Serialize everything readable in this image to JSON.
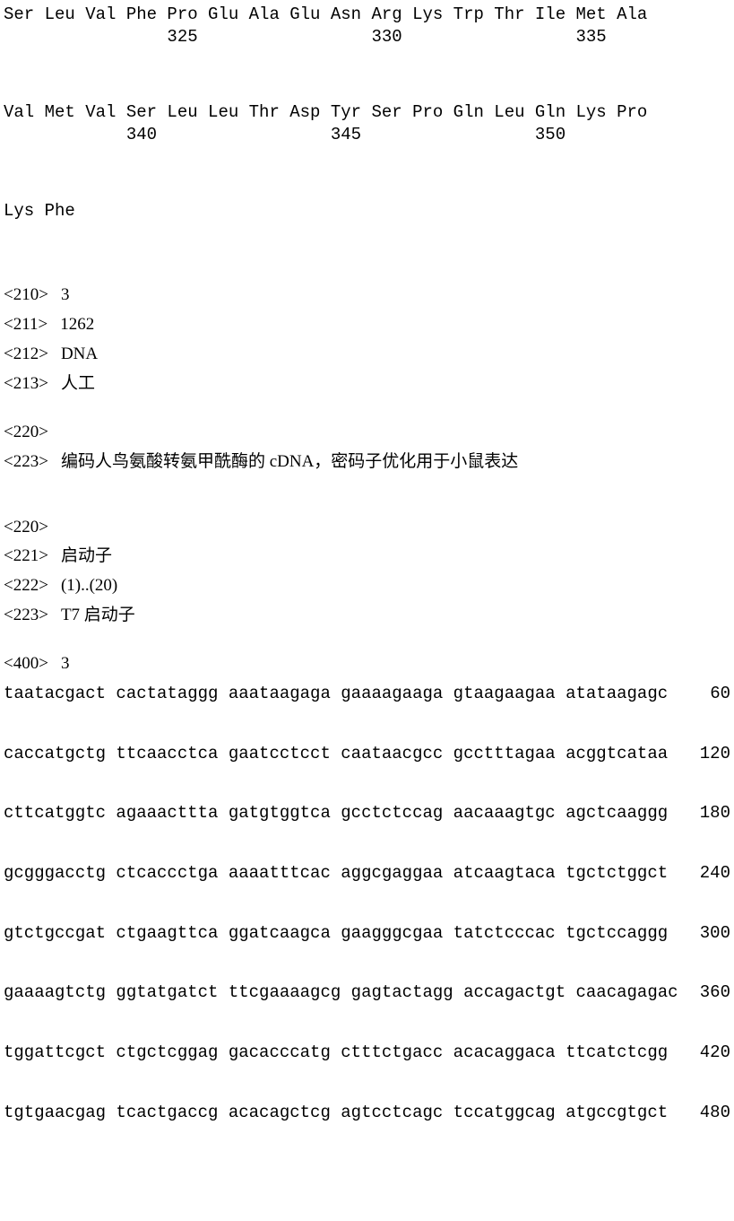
{
  "protein_rows": [
    {
      "residues": "Ser Leu Val Phe Pro Glu Ala Glu Asn Arg Lys Trp Thr Ile Met Ala",
      "positions": "                325                 330                 335"
    },
    {
      "residues": "Val Met Val Ser Leu Leu Thr Asp Tyr Ser Pro Gln Leu Gln Lys Pro",
      "positions": "            340                 345                 350"
    },
    {
      "residues": "Lys Phe",
      "positions": ""
    }
  ],
  "meta_block1": [
    {
      "tag": "<210>",
      "val": "3"
    },
    {
      "tag": "<211>",
      "val": "1262"
    },
    {
      "tag": "<212>",
      "val": "DNA"
    },
    {
      "tag": "<213>",
      "val": "人工"
    }
  ],
  "meta_block2": [
    {
      "tag": "<220>",
      "val": ""
    },
    {
      "tag": "<223>",
      "val": "编码人鸟氨酸转氨甲酰酶的 cDNA，密码子优化用于小鼠表达"
    }
  ],
  "meta_block3": [
    {
      "tag": "<220>",
      "val": ""
    },
    {
      "tag": "<221>",
      "val": "启动子"
    },
    {
      "tag": "<222>",
      "val": "(1)..(20)"
    },
    {
      "tag": "<223>",
      "val": "T7 启动子"
    }
  ],
  "meta_block4": [
    {
      "tag": "<400>",
      "val": "3"
    }
  ],
  "dna_rows": [
    {
      "seq": "taatacgact cactataggg aaataagaga gaaaagaaga gtaagaagaa atataagagc",
      "pos": "60"
    },
    {
      "seq": "caccatgctg ttcaacctca gaatcctcct caataacgcc gcctttagaa acggtcataa",
      "pos": "120"
    },
    {
      "seq": "cttcatggtc agaaacttta gatgtggtca gcctctccag aacaaagtgc agctcaaggg",
      "pos": "180"
    },
    {
      "seq": "gcgggacctg ctcaccctga aaaatttcac aggcgaggaa atcaagtaca tgctctggct",
      "pos": "240"
    },
    {
      "seq": "gtctgccgat ctgaagttca ggatcaagca gaagggcgaa tatctcccac tgctccaggg",
      "pos": "300"
    },
    {
      "seq": "gaaaagtctg ggtatgatct ttcgaaaagcg gagtactagg accagactgt caacagagac",
      "pos": "360"
    },
    {
      "seq": "tggattcgct ctgctcggag gacacccatg ctttctgacc acacaggaca ttcatctcgg",
      "pos": "420"
    },
    {
      "seq": "tgtgaacgag tcactgaccg acacagctcg agtcctcagc tccatggcag atgccgtgct",
      "pos": "480"
    }
  ]
}
